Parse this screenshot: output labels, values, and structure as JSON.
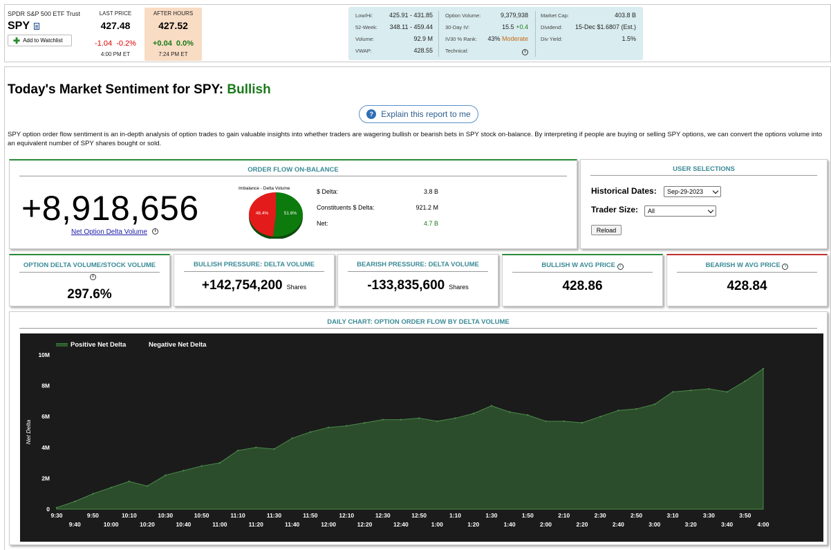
{
  "header": {
    "fund_name": "SPDR S&P 500 ETF Trust",
    "symbol": "SPY",
    "watchlist_label": "Add to Watchlist",
    "last_price_label": "LAST PRICE",
    "last_price": "427.48",
    "last_change": "-1.04",
    "last_change_pct": "-0.2%",
    "last_time": "4:00 PM ET",
    "after_hours_label": "AFTER HOURS",
    "after_price": "427.52",
    "after_change": "+0.04",
    "after_change_pct": "0.0%",
    "after_time": "7:24 PM ET",
    "stats": {
      "low_high_label": "Low/Hi:",
      "low_high": "425.91 - 431.85",
      "week52_label": "52-Week:",
      "week52": "348.11 - 459.44",
      "volume_label": "Volume:",
      "volume": "92.9 M",
      "vwap_label": "VWAP:",
      "vwap": "428.55",
      "opt_volume_label": "Option Volume:",
      "opt_volume": "9,379,938",
      "iv30_label": "30-Day IV:",
      "iv30": "15.5",
      "iv30_change": "+0.4",
      "ivrank_label": "IV30 % Rank:",
      "ivrank": "43%",
      "ivrank_text": "Moderate",
      "technical_label": "Technical:",
      "mcap_label": "Market Cap:",
      "mcap": "403.8 B",
      "dividend_label": "Dividend:",
      "dividend": "15-Dec $1.6807 (Est.)",
      "divyield_label": "Div Yield:",
      "divyield": "1.5%"
    }
  },
  "page": {
    "title_prefix": "Today's Market Sentiment for SPY:",
    "sentiment": "Bullish",
    "explain_label": "Explain this report to me",
    "description": "SPY option order flow sentiment is an in-depth analysis of option trades to gain valuable insights into whether traders are wagering bullish or bearish bets in SPY stock on-balance. By interpreting if people are buying or selling SPY options, we can convert the options volume into an equivalent number of SPY shares bought or sold."
  },
  "order_flow": {
    "title": "ORDER FLOW ON-BALANCE",
    "net_value": "+8,918,656",
    "net_label": "Net Option Delta Volume",
    "pie_title": "Imbalance - Delta Volume",
    "pie_red_pct": 48.4,
    "pie_green_pct": 51.6,
    "pie_red_label": "48.4%",
    "pie_green_label": "51.6%",
    "dollar_delta_label": "$ Delta:",
    "dollar_delta": "3.8 B",
    "constituents_label": "Constituents $ Delta:",
    "constituents": "921.2 M",
    "net_row_label": "Net:",
    "net_row": "4.7 B"
  },
  "user_selections": {
    "title": "USER SELECTIONS",
    "hist_label": "Historical Dates:",
    "hist_value": "Sep-29-2023",
    "trader_label": "Trader Size:",
    "trader_value": "All",
    "reload_label": "Reload"
  },
  "metrics": {
    "m1_title": "OPTION DELTA VOLUME/STOCK VOLUME",
    "m1_value": "297.6%",
    "m2_title": "BULLISH PRESSURE: DELTA VOLUME",
    "m2_value": "+142,754,200",
    "m2_unit": "Shares",
    "m3_title": "BEARISH PRESSURE: DELTA VOLUME",
    "m3_value": "-133,835,600",
    "m3_unit": "Shares",
    "m4_title": "BULLISH W AVG PRICE",
    "m4_value": "428.86",
    "m5_title": "BEARISH W AVG PRICE",
    "m5_value": "428.84"
  },
  "chart": {
    "title": "DAILY CHART: OPTION ORDER FLOW BY DELTA VOLUME"
  },
  "colors": {
    "bullish": "#1b7a1b",
    "bearish": "#d00000",
    "accent_teal": "#3a8a96",
    "chart_fill": "#2c4d2c"
  },
  "chart_data": {
    "type": "area",
    "ylabel": "Net Delta",
    "ylim": [
      0,
      10000000
    ],
    "y_ticks": [
      0,
      2000000,
      4000000,
      6000000,
      8000000,
      10000000
    ],
    "y_tick_labels": [
      "0",
      "2M",
      "4M",
      "6M",
      "8M",
      "10M"
    ],
    "x_tick_labels_top": [
      "9:30",
      "9:50",
      "10:10",
      "10:30",
      "10:50",
      "11:10",
      "11:30",
      "11:50",
      "12:10",
      "12:30",
      "12:50",
      "1:10",
      "1:30",
      "1:50",
      "2:10",
      "2:30",
      "2:50",
      "3:10",
      "3:30",
      "3:50"
    ],
    "x_tick_labels_bottom": [
      "9:40",
      "10:00",
      "10:20",
      "10:40",
      "11:00",
      "11:20",
      "11:40",
      "12:00",
      "12:20",
      "12:40",
      "1:00",
      "1:20",
      "1:40",
      "2:00",
      "2:20",
      "2:40",
      "3:00",
      "3:20",
      "3:40",
      "4:00"
    ],
    "legend": [
      "Positive Net Delta",
      "Negative Net Delta"
    ],
    "series": [
      {
        "name": "Positive Net Delta",
        "x": [
          "9:30",
          "9:40",
          "9:50",
          "10:00",
          "10:10",
          "10:20",
          "10:30",
          "10:40",
          "10:50",
          "11:00",
          "11:10",
          "11:20",
          "11:30",
          "11:40",
          "11:50",
          "12:00",
          "12:10",
          "12:20",
          "12:30",
          "12:40",
          "12:50",
          "1:00",
          "1:10",
          "1:20",
          "1:30",
          "1:40",
          "1:50",
          "2:00",
          "2:10",
          "2:20",
          "2:30",
          "2:40",
          "2:50",
          "3:00",
          "3:10",
          "3:20",
          "3:30",
          "3:40",
          "3:50",
          "4:00"
        ],
        "values": [
          100000,
          500000,
          1000000,
          1400000,
          1800000,
          1500000,
          2200000,
          2500000,
          2800000,
          3000000,
          3800000,
          4000000,
          3900000,
          4600000,
          5000000,
          5300000,
          5400000,
          5600000,
          5800000,
          5800000,
          5900000,
          5700000,
          5900000,
          6200000,
          6700000,
          6300000,
          6100000,
          5700000,
          5700000,
          5600000,
          6000000,
          6400000,
          6500000,
          6800000,
          7600000,
          7700000,
          7800000,
          7600000,
          8300000,
          9100000
        ]
      }
    ]
  }
}
